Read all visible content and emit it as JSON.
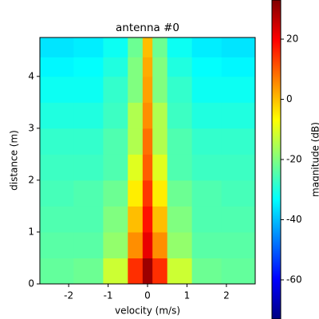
{
  "chart_data": {
    "type": "heatmap",
    "title": "antenna #0",
    "xlabel": "velocity (m/s)",
    "ylabel": "distance (m)",
    "colorbar_label": "magnitude (dB)",
    "colormap": "jet",
    "x": [
      -2.25,
      -1.5,
      -0.75,
      -0.25,
      0,
      0.25,
      0.75,
      1.5,
      2.25
    ],
    "y": [
      0.25,
      0.75,
      1.25,
      1.75,
      2.25,
      2.75,
      3.25,
      3.75,
      4.25,
      4.5
    ],
    "z": [
      [
        -23,
        -22,
        -12,
        15,
        30,
        15,
        -12,
        -22,
        -23
      ],
      [
        -24,
        -24,
        -18,
        5,
        22,
        5,
        -18,
        -24,
        -24
      ],
      [
        -25,
        -25,
        -20,
        0,
        18,
        0,
        -20,
        -25,
        -25
      ],
      [
        -26,
        -25,
        -22,
        -5,
        14,
        -5,
        -22,
        -25,
        -26
      ],
      [
        -27,
        -27,
        -25,
        -10,
        10,
        -10,
        -25,
        -27,
        -27
      ],
      [
        -28,
        -28,
        -25,
        -15,
        8,
        -15,
        -25,
        -28,
        -28
      ],
      [
        -30,
        -30,
        -27,
        -15,
        5,
        -15,
        -27,
        -30,
        -30
      ],
      [
        -32,
        -32,
        -28,
        -20,
        3,
        -20,
        -28,
        -32,
        -32
      ],
      [
        -34,
        -33,
        -30,
        -20,
        2,
        -20,
        -30,
        -33,
        -34
      ],
      [
        -36,
        -35,
        -32,
        -22,
        0,
        -22,
        -32,
        -35,
        -36
      ]
    ],
    "xlim": [
      -2.73,
      2.73
    ],
    "ylim": [
      0,
      4.75
    ],
    "xticks": [
      -2,
      -1,
      0,
      1,
      2
    ],
    "yticks": [
      0,
      1,
      2,
      3,
      4
    ],
    "clim": [
      -73,
      33
    ],
    "cticks": [
      -60,
      -40,
      -20,
      0,
      20
    ]
  }
}
